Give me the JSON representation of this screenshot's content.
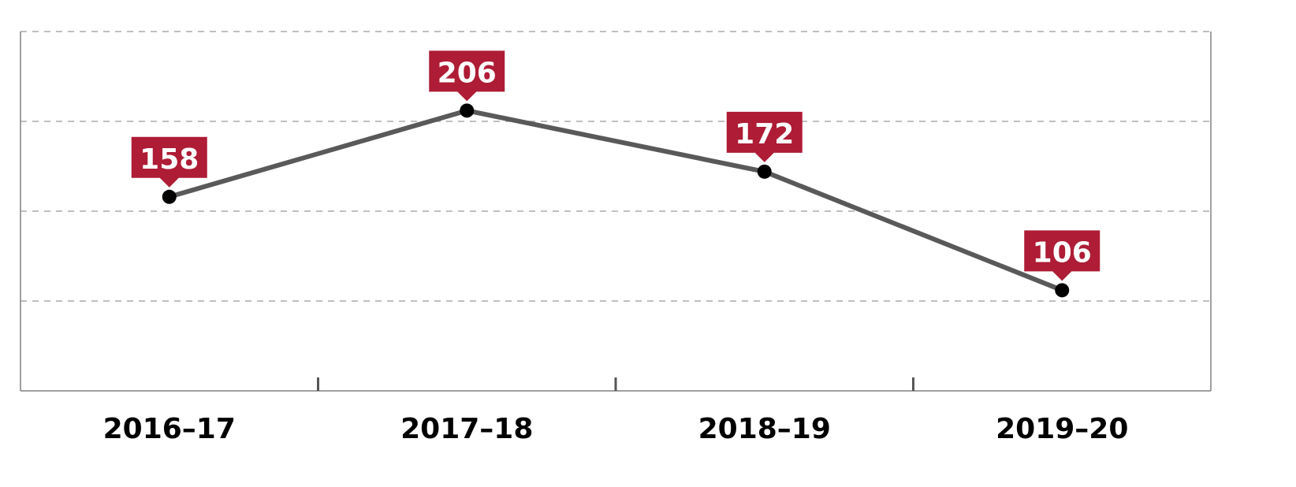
{
  "chart_data": {
    "type": "line",
    "categories": [
      "2016–17",
      "2017–18",
      "2018–19",
      "2019–20"
    ],
    "series": [
      {
        "values": [
          158,
          206,
          172,
          106
        ]
      }
    ],
    "data_labels": [
      "158",
      "206",
      "172",
      "106"
    ],
    "title": "",
    "xlabel": "",
    "ylabel": "",
    "ylim": [
      50,
      250
    ],
    "gridlines": [
      100,
      150,
      200,
      250
    ],
    "grid": true,
    "colors": {
      "line": "#595959",
      "marker": "#000000",
      "label_bg": "#ae1c35",
      "label_text": "#ffffff",
      "grid": "#aaaaaa",
      "axis": "#808080"
    }
  }
}
